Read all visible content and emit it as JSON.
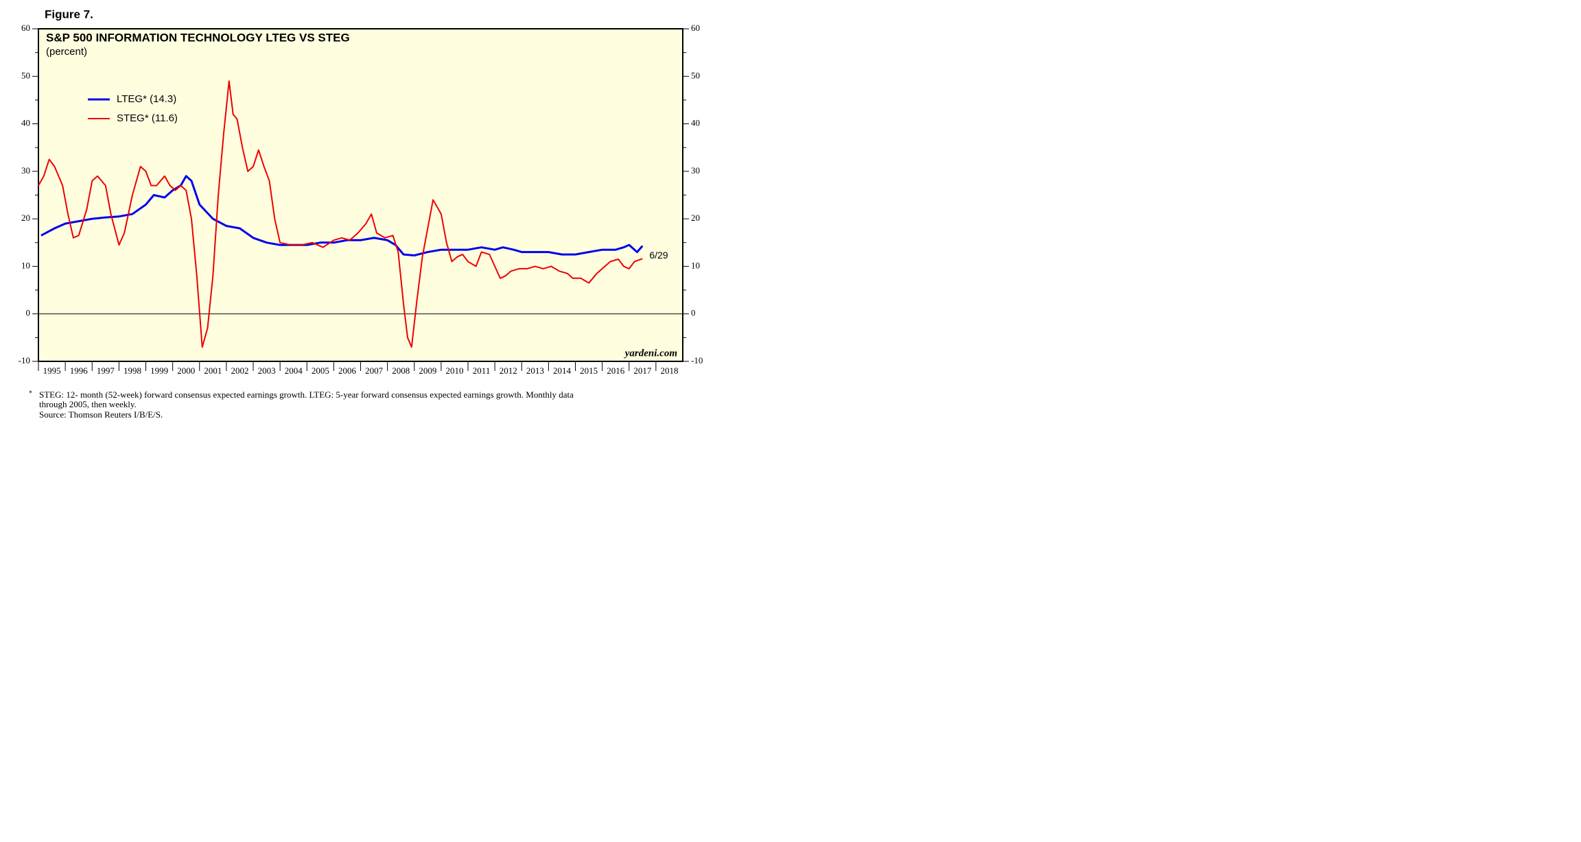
{
  "figure_label": "Figure 7.",
  "chart_data": {
    "type": "line",
    "title": "S&P 500 INFORMATION TECHNOLOGY LTEG VS STEG",
    "subtitle": "(percent)",
    "annotation": "6/29",
    "source_mark": "yardeni.com",
    "xlim": [
      1995,
      2019
    ],
    "xticks": [
      1995,
      1996,
      1997,
      1998,
      1999,
      2000,
      2001,
      2002,
      2003,
      2004,
      2005,
      2006,
      2007,
      2008,
      2009,
      2010,
      2011,
      2012,
      2013,
      2014,
      2015,
      2016,
      2017,
      2018
    ],
    "ylim": [
      -10,
      60
    ],
    "yticks": [
      -10,
      0,
      10,
      20,
      30,
      40,
      50,
      60
    ],
    "y2lim": [
      -10,
      60
    ],
    "y2ticks": [
      -10,
      0,
      10,
      20,
      30,
      40,
      50,
      60
    ],
    "series": [
      {
        "name": "LTEG* (14.3)",
        "color": "#0000ee",
        "x": [
          1995.1,
          1995.6,
          1996.0,
          1996.5,
          1997.0,
          1997.5,
          1998.0,
          1998.5,
          1999.0,
          1999.3,
          1999.7,
          2000.0,
          2000.3,
          2000.5,
          2000.7,
          2001.0,
          2001.5,
          2002.0,
          2002.5,
          2003.0,
          2003.5,
          2004.0,
          2004.5,
          2005.0,
          2005.5,
          2006.0,
          2006.5,
          2007.0,
          2007.5,
          2008.0,
          2008.3,
          2008.6,
          2009.0,
          2009.5,
          2010.0,
          2010.5,
          2011.0,
          2011.5,
          2012.0,
          2012.3,
          2012.7,
          2013.0,
          2013.5,
          2014.0,
          2014.5,
          2015.0,
          2015.5,
          2016.0,
          2016.5,
          2016.8,
          2017.0,
          2017.3,
          2017.5
        ],
        "values": [
          16.5,
          18,
          19,
          19.5,
          20,
          20.3,
          20.5,
          21,
          23,
          25,
          24.5,
          26,
          27,
          29,
          28,
          23,
          20,
          18.5,
          18,
          16,
          15,
          14.5,
          14.5,
          14.5,
          15,
          15,
          15.5,
          15.5,
          16,
          15.5,
          14.5,
          12.5,
          12.3,
          13,
          13.5,
          13.5,
          13.5,
          14,
          13.5,
          14,
          13.5,
          13,
          13,
          13,
          12.5,
          12.5,
          13,
          13.5,
          13.5,
          14,
          14.5,
          13,
          14.3
        ]
      },
      {
        "name": "STEG* (11.6)",
        "color": "#ee0000",
        "x": [
          1995.0,
          1995.2,
          1995.4,
          1995.6,
          1995.9,
          1996.1,
          1996.3,
          1996.5,
          1996.8,
          1997.0,
          1997.2,
          1997.5,
          1997.7,
          1998.0,
          1998.2,
          1998.5,
          1998.8,
          1999.0,
          1999.2,
          1999.4,
          1999.7,
          1999.9,
          2000.1,
          2000.3,
          2000.5,
          2000.7,
          2000.9,
          2001.1,
          2001.3,
          2001.5,
          2001.7,
          2001.9,
          2002.1,
          2002.25,
          2002.4,
          2002.6,
          2002.8,
          2003.0,
          2003.2,
          2003.4,
          2003.6,
          2003.8,
          2004.0,
          2004.4,
          2004.8,
          2005.2,
          2005.6,
          2006.0,
          2006.3,
          2006.6,
          2006.9,
          2007.2,
          2007.4,
          2007.6,
          2007.9,
          2008.2,
          2008.4,
          2008.6,
          2008.75,
          2008.9,
          2009.1,
          2009.3,
          2009.5,
          2009.7,
          2009.9,
          2010.0,
          2010.2,
          2010.4,
          2010.6,
          2010.8,
          2011.0,
          2011.3,
          2011.5,
          2011.8,
          2012.0,
          2012.2,
          2012.4,
          2012.6,
          2012.9,
          2013.2,
          2013.5,
          2013.8,
          2014.1,
          2014.4,
          2014.7,
          2014.9,
          2015.2,
          2015.5,
          2015.8,
          2016.0,
          2016.3,
          2016.6,
          2016.8,
          2017.0,
          2017.2,
          2017.5
        ],
        "values": [
          27,
          29,
          32.5,
          31,
          27,
          21,
          16,
          16.5,
          22,
          28,
          29,
          27,
          21,
          14.5,
          17,
          25,
          31,
          30,
          27,
          27,
          29,
          27,
          26,
          27,
          26,
          20,
          8,
          -7,
          -3,
          8,
          25,
          38,
          49,
          42,
          41,
          35,
          30,
          31,
          34.5,
          31,
          28,
          20,
          15,
          14.5,
          14.5,
          15,
          14,
          15.5,
          16,
          15.5,
          17,
          19,
          21,
          17,
          16,
          16.5,
          13,
          2,
          -5,
          -7,
          3,
          12,
          18,
          24,
          22,
          21,
          15,
          11,
          12,
          12.5,
          11,
          10,
          13,
          12.5,
          10,
          7.5,
          8,
          9,
          9.5,
          9.5,
          10,
          9.5,
          10,
          9,
          8.5,
          7.5,
          7.5,
          6.5,
          8.5,
          9.5,
          11,
          11.5,
          10,
          9.5,
          11,
          11.6
        ]
      }
    ]
  },
  "footnote": {
    "marker": "*",
    "lines": [
      "STEG: 12- month (52-week) forward consensus expected earnings growth. LTEG: 5-year forward consensus expected earnings growth. Monthly data",
      "through 2005, then weekly.",
      "Source: Thomson Reuters I/B/E/S."
    ]
  }
}
